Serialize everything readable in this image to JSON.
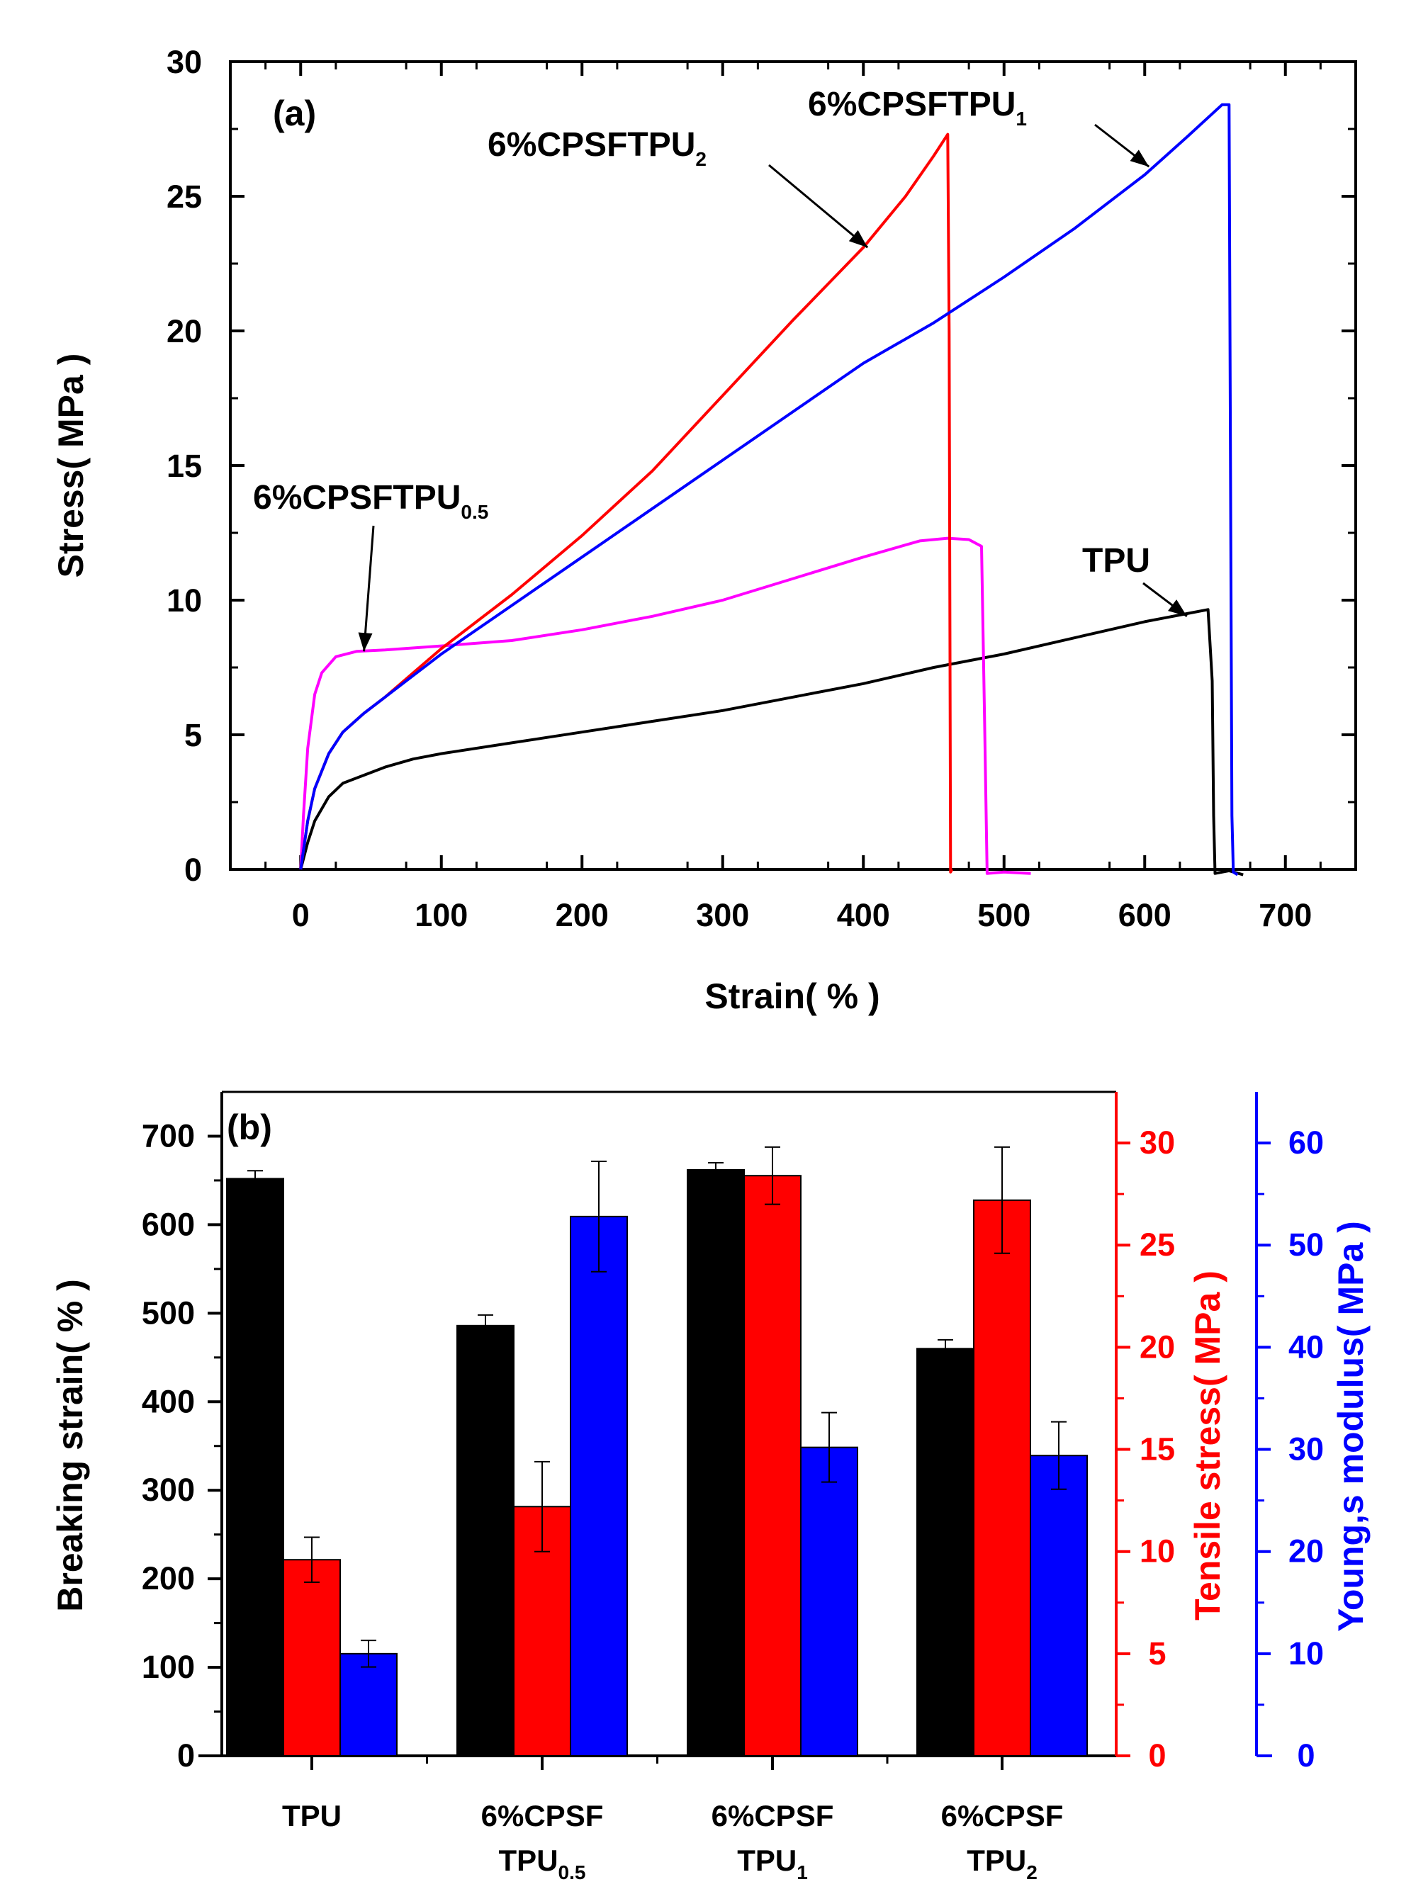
{
  "colors": {
    "black": "#000000",
    "red": "#ff0000",
    "blue": "#0000ff",
    "magenta": "#ff00ff"
  },
  "chart_data": [
    {
      "type": "line",
      "panel": "(a)",
      "xlabel": "Strain( % )",
      "ylabel": "Stress( MPa )",
      "xlim": [
        -50,
        750
      ],
      "ylim": [
        0,
        30
      ],
      "xticks": [
        0,
        100,
        200,
        300,
        400,
        500,
        600,
        700
      ],
      "yticks": [
        0,
        5,
        10,
        15,
        20,
        25,
        30
      ],
      "series": [
        {
          "name": "TPU",
          "label_main": "TPU",
          "label_sub": "",
          "color": "#000000",
          "points": [
            [
              0,
              0
            ],
            [
              5,
              1.0
            ],
            [
              10,
              1.8
            ],
            [
              20,
              2.7
            ],
            [
              30,
              3.2
            ],
            [
              45,
              3.5
            ],
            [
              60,
              3.8
            ],
            [
              80,
              4.1
            ],
            [
              100,
              4.3
            ],
            [
              150,
              4.7
            ],
            [
              200,
              5.1
            ],
            [
              250,
              5.5
            ],
            [
              300,
              5.9
            ],
            [
              350,
              6.4
            ],
            [
              400,
              6.9
            ],
            [
              450,
              7.5
            ],
            [
              500,
              8.0
            ],
            [
              550,
              8.6
            ],
            [
              600,
              9.2
            ],
            [
              630,
              9.5
            ],
            [
              645,
              9.65
            ],
            [
              648,
              7.0
            ],
            [
              649,
              2.0
            ],
            [
              650,
              -0.15
            ],
            [
              660,
              -0.05
            ],
            [
              670,
              -0.2
            ]
          ]
        },
        {
          "name": "6%CPSFTPU0.5",
          "label_main": "6%CPSFTPU",
          "label_sub": "0.5",
          "color": "#ff00ff",
          "points": [
            [
              0,
              0
            ],
            [
              2,
              2.0
            ],
            [
              5,
              4.5
            ],
            [
              10,
              6.5
            ],
            [
              15,
              7.3
            ],
            [
              25,
              7.9
            ],
            [
              40,
              8.1
            ],
            [
              60,
              8.15
            ],
            [
              100,
              8.3
            ],
            [
              150,
              8.5
            ],
            [
              200,
              8.9
            ],
            [
              250,
              9.4
            ],
            [
              300,
              10.0
            ],
            [
              350,
              10.8
            ],
            [
              400,
              11.6
            ],
            [
              440,
              12.2
            ],
            [
              460,
              12.3
            ],
            [
              475,
              12.25
            ],
            [
              484,
              12.0
            ],
            [
              486,
              6.0
            ],
            [
              488,
              -0.15
            ],
            [
              500,
              -0.1
            ],
            [
              519,
              -0.15
            ]
          ]
        },
        {
          "name": "6%CPSFTPU2",
          "label_main": "6%CPSFTPU",
          "label_sub": "2",
          "color": "#ff0000",
          "points": [
            [
              0,
              0
            ],
            [
              5,
              1.8
            ],
            [
              10,
              3.0
            ],
            [
              20,
              4.3
            ],
            [
              30,
              5.1
            ],
            [
              45,
              5.8
            ],
            [
              60,
              6.4
            ],
            [
              80,
              7.3
            ],
            [
              100,
              8.2
            ],
            [
              150,
              10.2
            ],
            [
              200,
              12.4
            ],
            [
              250,
              14.8
            ],
            [
              300,
              17.6
            ],
            [
              350,
              20.4
            ],
            [
              400,
              23.1
            ],
            [
              430,
              25.0
            ],
            [
              450,
              26.5
            ],
            [
              460,
              27.3
            ],
            [
              461,
              20.0
            ],
            [
              461.5,
              10.0
            ],
            [
              462,
              -0.1
            ],
            [
              463,
              0.0
            ]
          ]
        },
        {
          "name": "6%CPSFTPU1",
          "label_main": "6%CPSFTPU",
          "label_sub": "1",
          "color": "#0000ff",
          "points": [
            [
              0,
              0
            ],
            [
              5,
              1.8
            ],
            [
              10,
              3.0
            ],
            [
              20,
              4.3
            ],
            [
              30,
              5.1
            ],
            [
              45,
              5.8
            ],
            [
              60,
              6.4
            ],
            [
              80,
              7.2
            ],
            [
              100,
              8.0
            ],
            [
              150,
              9.8
            ],
            [
              200,
              11.6
            ],
            [
              250,
              13.4
            ],
            [
              300,
              15.2
            ],
            [
              350,
              17.0
            ],
            [
              400,
              18.8
            ],
            [
              450,
              20.3
            ],
            [
              500,
              22.0
            ],
            [
              550,
              23.8
            ],
            [
              600,
              25.8
            ],
            [
              630,
              27.2
            ],
            [
              655,
              28.4
            ],
            [
              660,
              28.4
            ],
            [
              661,
              15.0
            ],
            [
              662,
              2.0
            ],
            [
              663,
              -0.1
            ],
            [
              666,
              -0.2
            ]
          ]
        }
      ],
      "annotations": [
        {
          "target": "6%CPSFTPU1",
          "at": [
            603,
            26.1
          ]
        },
        {
          "target": "6%CPSFTPU2",
          "at": [
            403,
            23.1
          ]
        },
        {
          "target": "6%CPSFTPU0.5",
          "at": [
            45,
            8.1
          ]
        },
        {
          "target": "TPU",
          "at": [
            630,
            9.4
          ]
        }
      ]
    },
    {
      "type": "bar",
      "panel": "(b)",
      "categories": [
        {
          "line1": "TPU",
          "line2_main": "",
          "line2_sub": ""
        },
        {
          "line1": "6%CPSF",
          "line2_main": "TPU",
          "line2_sub": "0.5"
        },
        {
          "line1": "6%CPSF",
          "line2_main": "TPU",
          "line2_sub": "1"
        },
        {
          "line1": "6%CPSF",
          "line2_main": "TPU",
          "line2_sub": "2"
        }
      ],
      "axes": {
        "left": {
          "label": "Breaking strain( % )",
          "lim": [
            0,
            750
          ],
          "ticks": [
            0,
            100,
            200,
            300,
            400,
            500,
            600,
            700
          ],
          "color": "#000000"
        },
        "right1": {
          "label": "Tensile stress( MPa )",
          "lim": [
            0,
            32.5
          ],
          "ticks": [
            0,
            5,
            10,
            15,
            20,
            25,
            30
          ],
          "color": "#ff0000"
        },
        "right2": {
          "label": "Young,s modulus( MPa )",
          "lim": [
            0,
            65
          ],
          "ticks": [
            0,
            10,
            20,
            30,
            40,
            50,
            60
          ],
          "color": "#0000ff"
        }
      },
      "series": [
        {
          "name": "Breaking strain",
          "axis": "left",
          "color": "#000000",
          "values": [
            652,
            486,
            662,
            460
          ],
          "errors": [
            9,
            12,
            8,
            10
          ]
        },
        {
          "name": "Tensile stress",
          "axis": "right1",
          "color": "#ff0000",
          "values": [
            9.6,
            12.2,
            28.4,
            27.2
          ],
          "errors": [
            1.1,
            2.2,
            1.4,
            2.6
          ]
        },
        {
          "name": "Young,s modulus",
          "axis": "right2",
          "color": "#0000ff",
          "values": [
            10.0,
            52.8,
            30.2,
            29.4
          ],
          "errors": [
            1.3,
            5.4,
            3.4,
            3.3
          ]
        }
      ]
    }
  ]
}
